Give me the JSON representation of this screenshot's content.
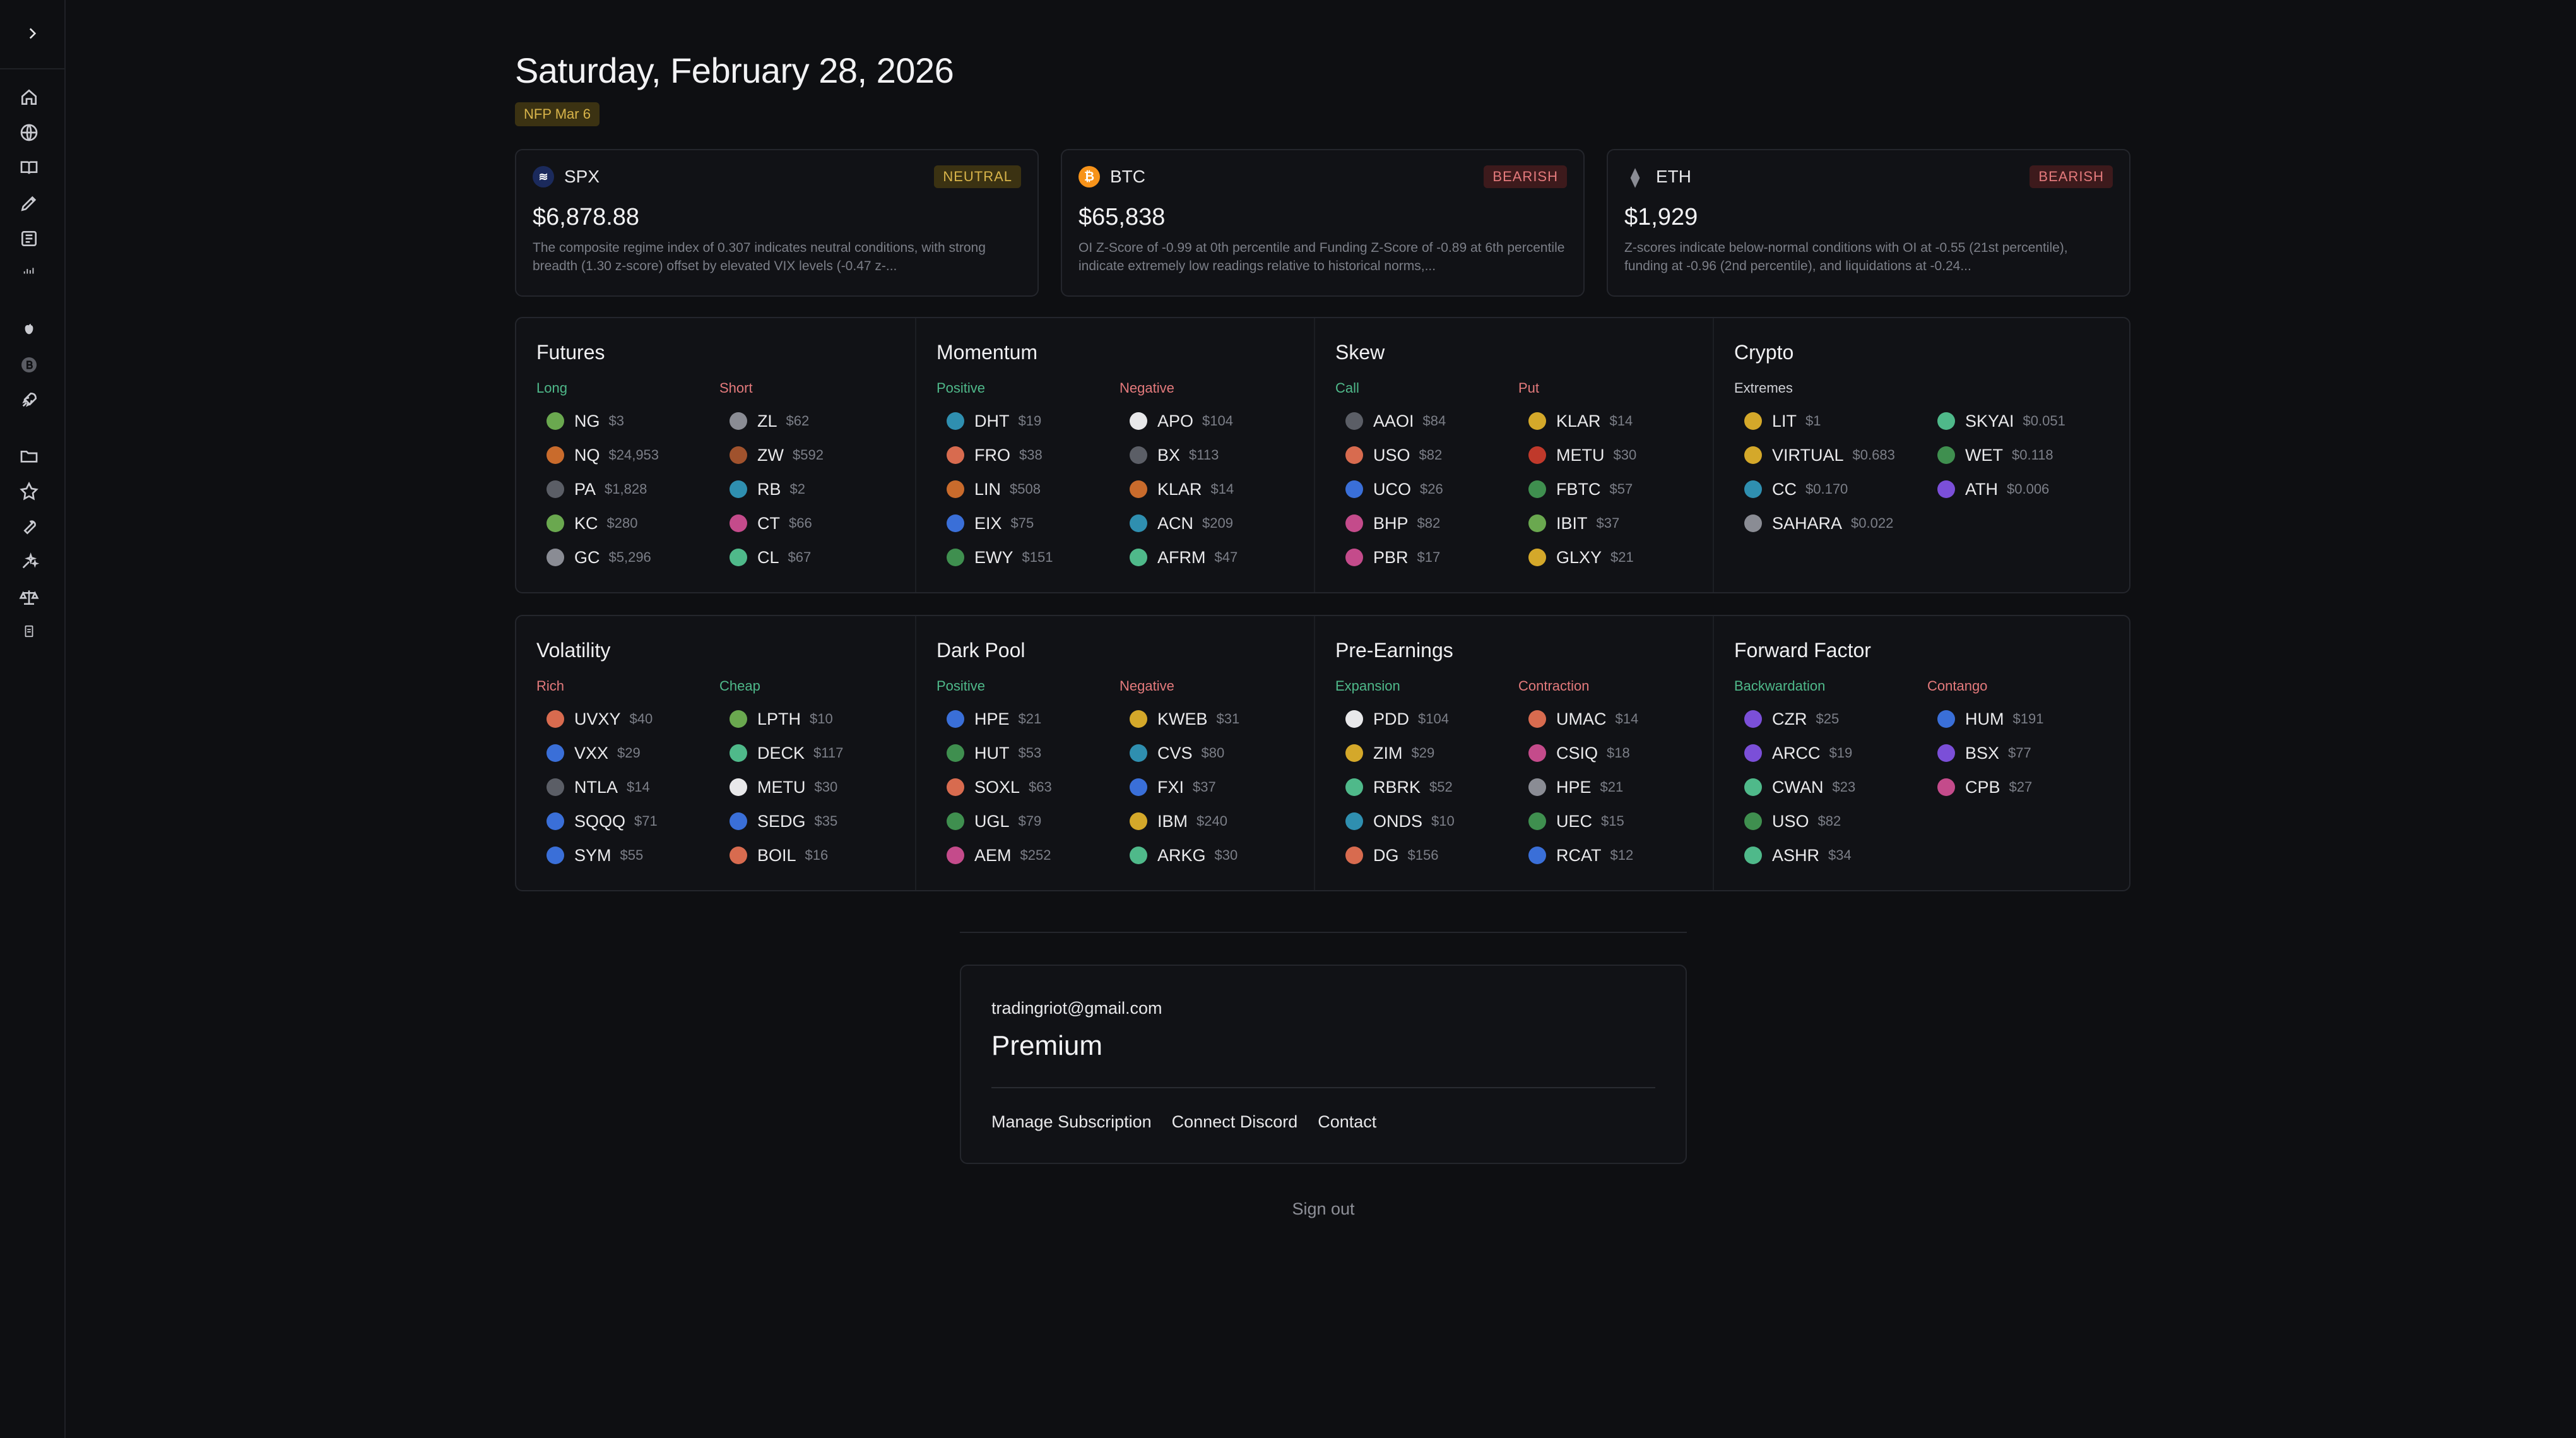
{
  "header": {
    "date": "Saturday, February 28, 2026",
    "event_badge": "NFP Mar 6"
  },
  "cards": [
    {
      "symbol": "SPX",
      "regime": "NEUTRAL",
      "price": "$6,878.88",
      "summary": "The composite regime index of 0.307 indicates neutral conditions, with strong breadth (1.30 z-score) offset by elevated VIX levels (-0.47 z-..."
    },
    {
      "symbol": "BTC",
      "regime": "BEARISH",
      "price": "$65,838",
      "summary": "OI Z-Score of -0.99 at 0th percentile and Funding Z-Score of -0.89 at 6th percentile indicate extremely low readings relative to historical norms,..."
    },
    {
      "symbol": "ETH",
      "regime": "BEARISH",
      "price": "$1,929",
      "summary": "Z-scores indicate below-normal conditions with OI at -0.55 (21st percentile), funding at -0.96 (2nd percentile), and liquidations at -0.24..."
    }
  ],
  "panel1": [
    {
      "title": "Futures",
      "left": {
        "label": "Long",
        "items": [
          [
            "NG",
            "$3"
          ],
          [
            "NQ",
            "$24,953"
          ],
          [
            "PA",
            "$1,828"
          ],
          [
            "KC",
            "$280"
          ],
          [
            "GC",
            "$5,296"
          ]
        ]
      },
      "right": {
        "label": "Short",
        "items": [
          [
            "ZL",
            "$62"
          ],
          [
            "ZW",
            "$592"
          ],
          [
            "RB",
            "$2"
          ],
          [
            "CT",
            "$66"
          ],
          [
            "CL",
            "$67"
          ]
        ]
      }
    },
    {
      "title": "Momentum",
      "left": {
        "label": "Positive",
        "items": [
          [
            "DHT",
            "$19"
          ],
          [
            "FRO",
            "$38"
          ],
          [
            "LIN",
            "$508"
          ],
          [
            "EIX",
            "$75"
          ],
          [
            "EWY",
            "$151"
          ]
        ]
      },
      "right": {
        "label": "Negative",
        "items": [
          [
            "APO",
            "$104"
          ],
          [
            "BX",
            "$113"
          ],
          [
            "KLAR",
            "$14"
          ],
          [
            "ACN",
            "$209"
          ],
          [
            "AFRM",
            "$47"
          ]
        ]
      }
    },
    {
      "title": "Skew",
      "left": {
        "label": "Call",
        "items": [
          [
            "AAOI",
            "$84"
          ],
          [
            "USO",
            "$82"
          ],
          [
            "UCO",
            "$26"
          ],
          [
            "BHP",
            "$82"
          ],
          [
            "PBR",
            "$17"
          ]
        ]
      },
      "right": {
        "label": "Put",
        "items": [
          [
            "KLAR",
            "$14"
          ],
          [
            "METU",
            "$30"
          ],
          [
            "FBTC",
            "$57"
          ],
          [
            "IBIT",
            "$37"
          ],
          [
            "GLXY",
            "$21"
          ]
        ]
      }
    },
    {
      "title": "Crypto",
      "left": {
        "label": "Extremes",
        "items": [
          [
            "LIT",
            "$1"
          ],
          [
            "VIRTUAL",
            "$0.683"
          ],
          [
            "CC",
            "$0.170"
          ],
          [
            "SAHARA",
            "$0.022"
          ]
        ]
      },
      "right": {
        "label": "",
        "items": [
          [
            "SKYAI",
            "$0.051"
          ],
          [
            "WET",
            "$0.118"
          ],
          [
            "ATH",
            "$0.006"
          ]
        ]
      }
    }
  ],
  "panel2": [
    {
      "title": "Volatility",
      "left": {
        "label": "Rich",
        "items": [
          [
            "UVXY",
            "$40"
          ],
          [
            "VXX",
            "$29"
          ],
          [
            "NTLA",
            "$14"
          ],
          [
            "SQQQ",
            "$71"
          ],
          [
            "SYM",
            "$55"
          ]
        ]
      },
      "right": {
        "label": "Cheap",
        "items": [
          [
            "LPTH",
            "$10"
          ],
          [
            "DECK",
            "$117"
          ],
          [
            "METU",
            "$30"
          ],
          [
            "SEDG",
            "$35"
          ],
          [
            "BOIL",
            "$16"
          ]
        ]
      }
    },
    {
      "title": "Dark Pool",
      "left": {
        "label": "Positive",
        "items": [
          [
            "HPE",
            "$21"
          ],
          [
            "HUT",
            "$53"
          ],
          [
            "SOXL",
            "$63"
          ],
          [
            "UGL",
            "$79"
          ],
          [
            "AEM",
            "$252"
          ]
        ]
      },
      "right": {
        "label": "Negative",
        "items": [
          [
            "KWEB",
            "$31"
          ],
          [
            "CVS",
            "$80"
          ],
          [
            "FXI",
            "$37"
          ],
          [
            "IBM",
            "$240"
          ],
          [
            "ARKG",
            "$30"
          ]
        ]
      }
    },
    {
      "title": "Pre-Earnings",
      "left": {
        "label": "Expansion",
        "items": [
          [
            "PDD",
            "$104"
          ],
          [
            "ZIM",
            "$29"
          ],
          [
            "RBRK",
            "$52"
          ],
          [
            "ONDS",
            "$10"
          ],
          [
            "DG",
            "$156"
          ]
        ]
      },
      "right": {
        "label": "Contraction",
        "items": [
          [
            "UMAC",
            "$14"
          ],
          [
            "CSIQ",
            "$18"
          ],
          [
            "HPE",
            "$21"
          ],
          [
            "UEC",
            "$15"
          ],
          [
            "RCAT",
            "$12"
          ]
        ]
      }
    },
    {
      "title": "Forward Factor",
      "left": {
        "label": "Backwardation",
        "items": [
          [
            "CZR",
            "$25"
          ],
          [
            "ARCC",
            "$19"
          ],
          [
            "CWAN",
            "$23"
          ],
          [
            "USO",
            "$82"
          ],
          [
            "ASHR",
            "$34"
          ]
        ]
      },
      "right": {
        "label": "Contango",
        "items": [
          [
            "HUM",
            "$191"
          ],
          [
            "BSX",
            "$77"
          ],
          [
            "CPB",
            "$27"
          ]
        ]
      }
    }
  ],
  "account": {
    "email": "tradingriot@gmail.com",
    "plan": "Premium",
    "links": [
      "Manage Subscription",
      "Connect Discord",
      "Contact"
    ],
    "sign_out": "Sign out"
  },
  "colors": {
    "positive": "#4fb98a",
    "negative": "#e47a7c",
    "neutral": "#d8b44a"
  }
}
